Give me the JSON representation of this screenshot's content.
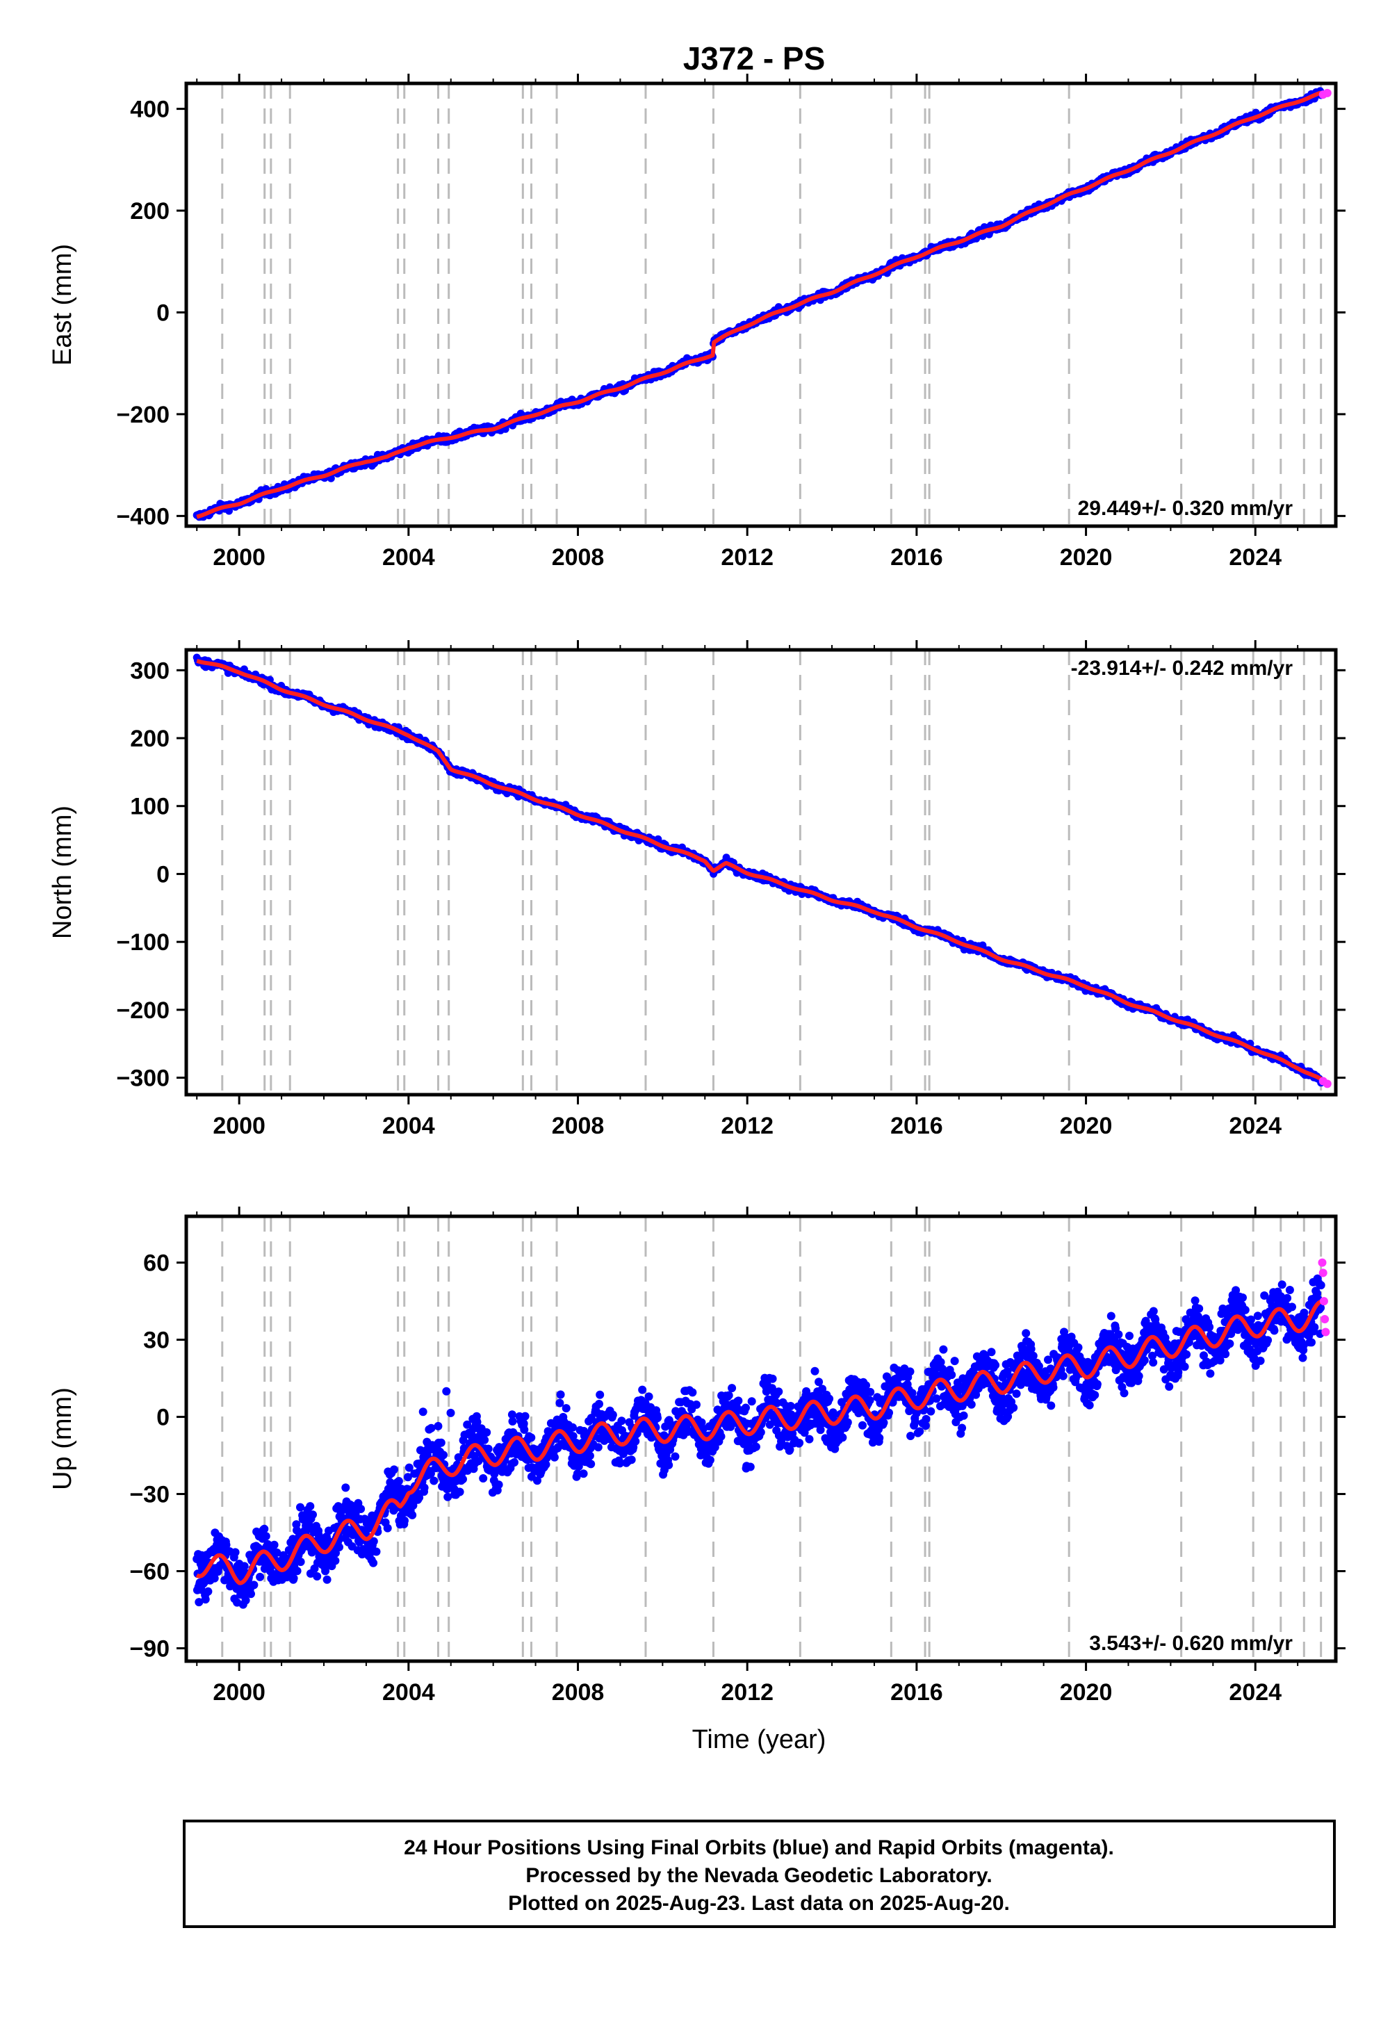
{
  "title": "J372 - PS",
  "chart_data": {
    "type": "scatter",
    "x_range": [
      1998.75,
      2025.9
    ],
    "x_ticks": [
      2000,
      2004,
      2008,
      2012,
      2016,
      2020,
      2024
    ],
    "x_tick_labels": [
      "2000",
      "2004",
      "2008",
      "2012",
      "2016",
      "2020",
      "2024"
    ],
    "xlabel": "Time (year)",
    "legend_final": "Final Orbits (blue)",
    "legend_rapid": "Rapid Orbits (magenta)",
    "colors": {
      "final": "#0000ff",
      "rapid": "#ff33ff",
      "model": "#ff2020",
      "equipment_lines": "#bbbbbb"
    },
    "equipment_change_years": [
      1999.6,
      2000.6,
      2000.75,
      2001.2,
      2003.75,
      2003.9,
      2004.7,
      2004.95,
      2006.7,
      2006.9,
      2007.5,
      2009.6,
      2011.2,
      2013.25,
      2015.4,
      2016.2,
      2016.3,
      2019.6,
      2022.25,
      2023.95,
      2024.6,
      2025.15,
      2025.55
    ],
    "panels": [
      {
        "ylabel": "East (mm)",
        "ylim": [
          -420,
          450
        ],
        "y_ticks": [
          400,
          200,
          0,
          -200,
          -400
        ],
        "y_tick_labels": [
          "400",
          "200",
          "0",
          "−200",
          "−400"
        ],
        "rate": "29.449+/- 0.320 mm/yr",
        "rate_position": "bottom-right",
        "series": [
          {
            "name": "Final Orbits (blue)",
            "x": [
              1999.0,
              2000.0,
              2001.0,
              2002.0,
              2003.0,
              2003.5,
              2004.0,
              2005.0,
              2006.0,
              2007.0,
              2008.0,
              2009.0,
              2010.0,
              2011.0,
              2011.19,
              2011.21,
              2012.0,
              2013.0,
              2014.0,
              2015.0,
              2016.0,
              2017.0,
              2018.0,
              2019.0,
              2020.0,
              2021.0,
              2022.0,
              2023.0,
              2024.0,
              2025.0,
              2025.55
            ],
            "y": [
              -400,
              -375,
              -345,
              -320,
              -292,
              -285,
              -265,
              -245,
              -228,
              -200,
              -175,
              -148,
              -118,
              -88,
              -83,
              -58,
              -25,
              10,
              40,
              75,
              110,
              140,
              170,
              210,
              245,
              280,
              315,
              350,
              385,
              415,
              430
            ]
          },
          {
            "name": "Rapid Orbits (magenta)",
            "x": [
              2025.6,
              2025.7
            ],
            "y": [
              428,
              431
            ]
          }
        ]
      },
      {
        "ylabel": "North (mm)",
        "ylim": [
          -325,
          330
        ],
        "y_ticks": [
          300,
          200,
          100,
          0,
          -100,
          -200,
          -300
        ],
        "y_tick_labels": [
          "300",
          "200",
          "100",
          "0",
          "−100",
          "−200",
          "−300"
        ],
        "rate": "-23.914+/- 0.242 mm/yr",
        "rate_position": "top-right",
        "series": [
          {
            "name": "Final Orbits (blue)",
            "x": [
              1999.0,
              2000.0,
              2001.0,
              2002.0,
              2003.0,
              2004.0,
              2004.7,
              2005.0,
              2006.0,
              2007.0,
              2008.0,
              2009.0,
              2010.0,
              2011.0,
              2011.2,
              2011.5,
              2012.0,
              2013.0,
              2014.0,
              2015.0,
              2016.0,
              2017.0,
              2018.0,
              2019.0,
              2020.0,
              2021.0,
              2022.0,
              2023.0,
              2024.0,
              2025.0,
              2025.55
            ],
            "y": [
              315,
              298,
              272,
              250,
              228,
              205,
              180,
              155,
              132,
              110,
              88,
              65,
              42,
              20,
              5,
              15,
              2,
              -18,
              -38,
              -55,
              -78,
              -100,
              -125,
              -145,
              -165,
              -190,
              -212,
              -235,
              -258,
              -285,
              -303
            ]
          },
          {
            "name": "Rapid Orbits (magenta)",
            "x": [
              2025.6,
              2025.7
            ],
            "y": [
              -305,
              -309
            ]
          }
        ]
      },
      {
        "ylabel": "Up (mm)",
        "ylim": [
          -95,
          78
        ],
        "y_ticks": [
          60,
          30,
          0,
          -30,
          -60,
          -90
        ],
        "y_tick_labels": [
          "60",
          "30",
          "0",
          "−30",
          "−60",
          "−90"
        ],
        "rate": "3.543+/- 0.620 mm/yr",
        "rate_position": "bottom-right",
        "series": [
          {
            "name": "Final Orbits (blue)",
            "x": [
              1999.0,
              2000.0,
              2001.0,
              2002.0,
              2003.0,
              2003.8,
              2004.0,
              2005.0,
              2006.0,
              2007.0,
              2008.0,
              2009.0,
              2010.0,
              2011.0,
              2012.0,
              2013.0,
              2014.0,
              2015.0,
              2016.0,
              2017.0,
              2018.0,
              2019.0,
              2020.0,
              2021.0,
              2022.0,
              2023.0,
              2024.0,
              2025.0,
              2025.55
            ],
            "y": [
              -57,
              -60,
              -55,
              -48,
              -43,
              -35,
              -25,
              -18,
              -14,
              -12,
              -9,
              -6,
              -5,
              -4,
              -2,
              0,
              2,
              4,
              8,
              11,
              14,
              18,
              20,
              24,
              28,
              32,
              36,
              38,
              40
            ]
          },
          {
            "name": "Rapid Orbits (magenta)",
            "x": [
              2025.58,
              2025.6,
              2025.62,
              2025.64,
              2025.66
            ],
            "y": [
              60,
              56,
              45,
              38,
              33
            ]
          }
        ]
      }
    ]
  },
  "footer": {
    "line1": "24 Hour Positions Using Final Orbits (blue) and Rapid Orbits (magenta).",
    "line2": "Processed by the Nevada Geodetic Laboratory.",
    "line3": "Plotted on 2025-Aug-23. Last data on 2025-Aug-20."
  }
}
